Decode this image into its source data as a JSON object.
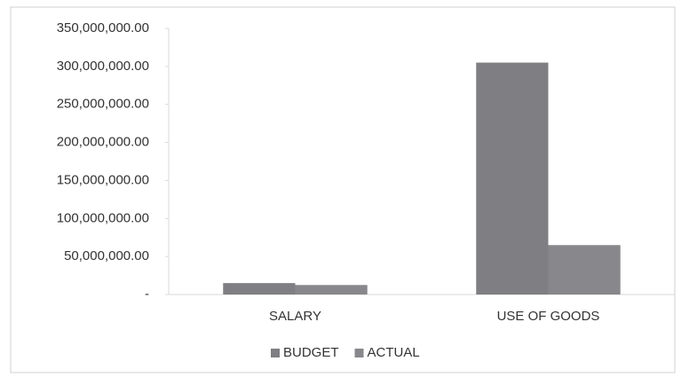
{
  "chart_data": {
    "type": "bar",
    "categories": [
      "SALARY",
      "USE OF GOODS"
    ],
    "series": [
      {
        "name": "BUDGET",
        "color": "#7f7f83",
        "values": [
          15000000,
          305000000
        ]
      },
      {
        "name": "ACTUAL",
        "color": "#88888c",
        "values": [
          12500000,
          65000000
        ]
      }
    ],
    "ylim": [
      0,
      350000000
    ],
    "yticks": [
      {
        "value": 0,
        "label": "-"
      },
      {
        "value": 50000000,
        "label": "50,000,000.00"
      },
      {
        "value": 100000000,
        "label": "100,000,000.00"
      },
      {
        "value": 150000000,
        "label": "150,000,000.00"
      },
      {
        "value": 200000000,
        "label": "200,000,000.00"
      },
      {
        "value": 250000000,
        "label": "250,000,000.00"
      },
      {
        "value": 300000000,
        "label": "300,000,000.00"
      },
      {
        "value": 350000000,
        "label": "350,000,000.00"
      }
    ],
    "legend": "bottom"
  }
}
